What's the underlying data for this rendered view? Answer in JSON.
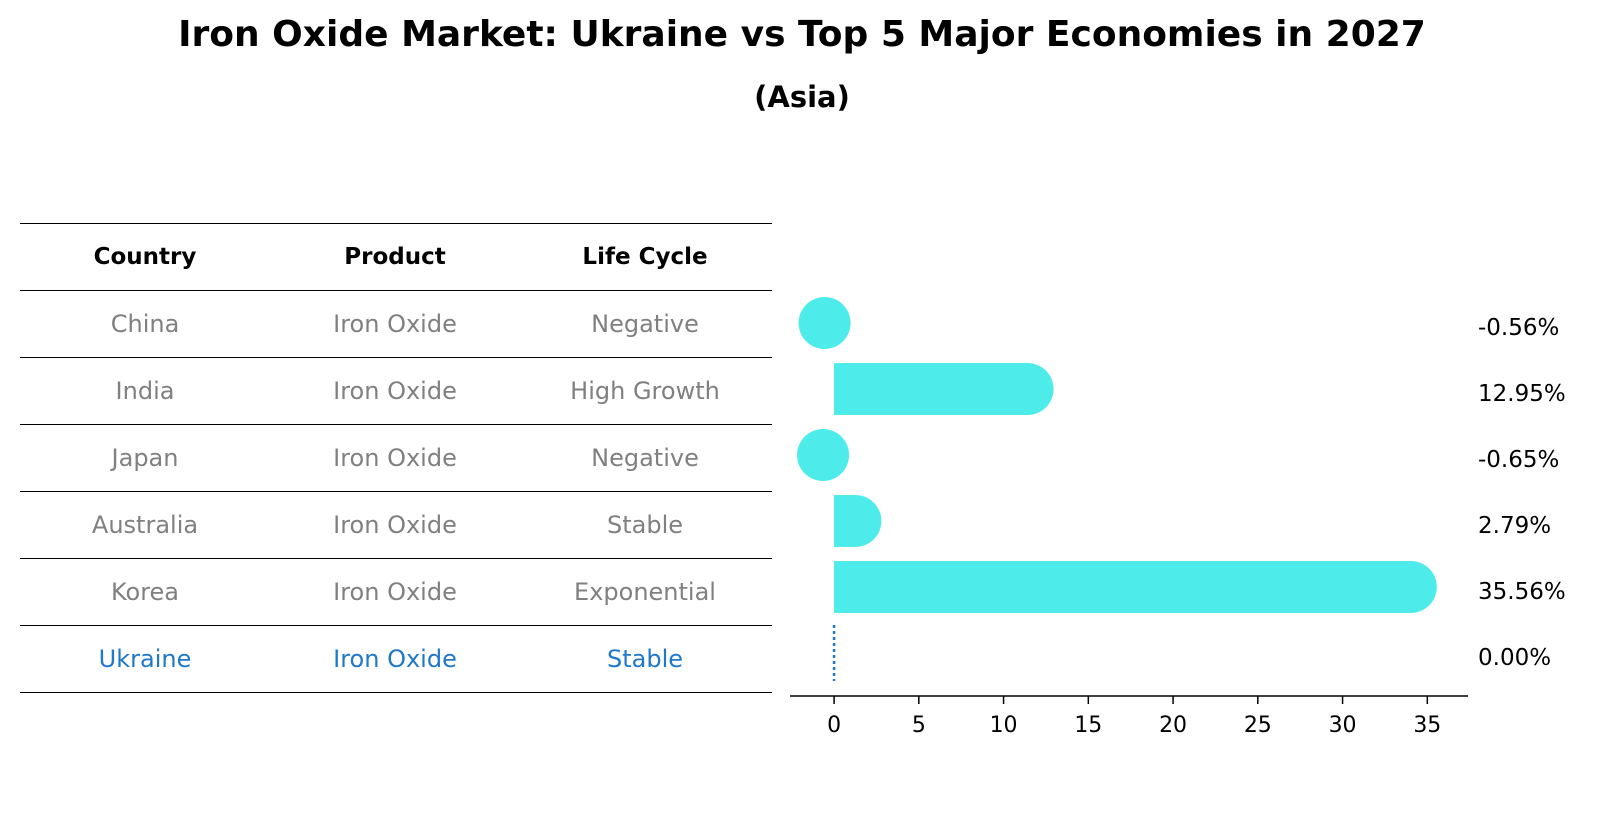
{
  "title": "Iron Oxide Market: Ukraine vs Top 5 Major Economies in 2027",
  "subtitle": "(Asia)",
  "table": {
    "headers": [
      "Country",
      "Product",
      "Life Cycle"
    ],
    "rows": [
      [
        "China",
        "Iron Oxide",
        "Negative"
      ],
      [
        "India",
        "Iron Oxide",
        "High Growth"
      ],
      [
        "Japan",
        "Iron Oxide",
        "Negative"
      ],
      [
        "Australia",
        "Iron Oxide",
        "Stable"
      ],
      [
        "Korea",
        "Iron Oxide",
        "Exponential"
      ],
      [
        "Ukraine",
        "Iron Oxide",
        "Stable"
      ]
    ],
    "highlight_row": 5
  },
  "colors": {
    "bar": "#4deceb",
    "highlight": "#1f78c8",
    "muted": "#808080"
  },
  "chart_data": {
    "type": "bar",
    "orientation": "horizontal",
    "categories": [
      "China",
      "India",
      "Japan",
      "Australia",
      "Korea",
      "Ukraine"
    ],
    "values": [
      -0.56,
      12.95,
      -0.65,
      2.79,
      35.56,
      0.0
    ],
    "value_labels": [
      "-0.56%",
      "12.95%",
      "-0.65%",
      "2.79%",
      "35.56%",
      "0.00%"
    ],
    "xlim": [
      -2.6,
      37.4
    ],
    "xticks": [
      0,
      5,
      10,
      15,
      20,
      25,
      30,
      35
    ],
    "grid": false,
    "legend": "none"
  }
}
